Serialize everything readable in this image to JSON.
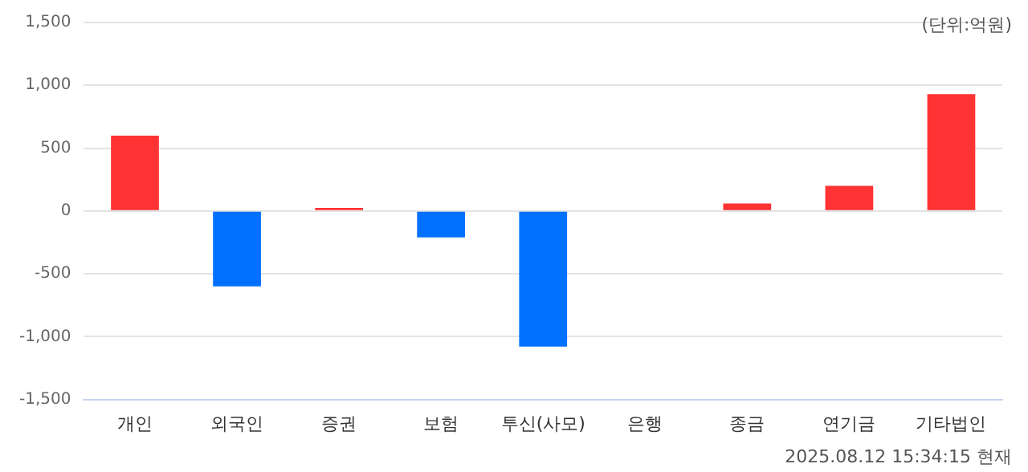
{
  "chart_data": {
    "type": "bar",
    "categories": [
      "개인",
      "외국인",
      "증권",
      "보험",
      "투신(사모)",
      "은행",
      "종금",
      "연기금",
      "기타법인"
    ],
    "values": [
      600,
      -600,
      25,
      -210,
      -1080,
      0,
      60,
      200,
      930
    ],
    "colors": [
      "#ff3333",
      "#0070ff",
      "#ff3333",
      "#0070ff",
      "#0070ff",
      "#ff3333",
      "#ff3333",
      "#ff3333",
      "#ff3333"
    ],
    "ylim": [
      -1500,
      1500
    ],
    "yticks": [
      {
        "value": -1500,
        "label": "-1,500"
      },
      {
        "value": -1000,
        "label": "-1,000"
      },
      -500,
      0,
      500,
      {
        "value": 1000,
        "label": "1,000"
      },
      {
        "value": 1500,
        "label": "1,500"
      }
    ],
    "grid": "y",
    "legend": false,
    "annotations": [
      "(단위:억원)",
      "2025.08.12 15:34:15 현재"
    ]
  }
}
